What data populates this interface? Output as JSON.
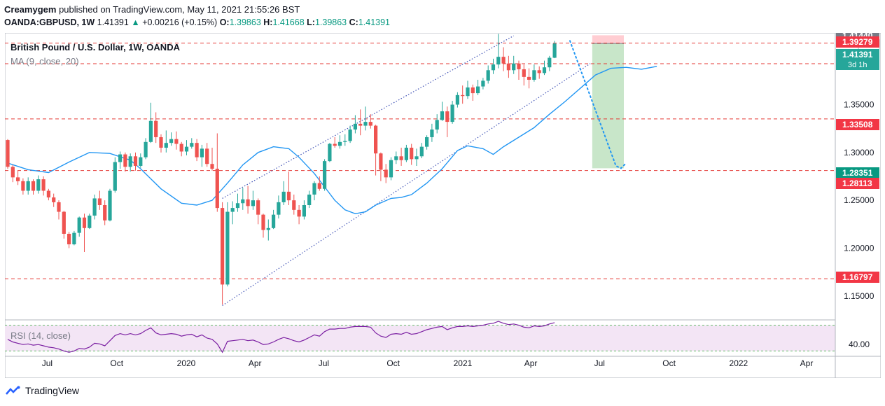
{
  "header": {
    "author": "Creamygem",
    "published_text": "published on TradingView.com, May 11, 2021 21:55:26 BST",
    "symbol": "OANDA:GBPUSD, 1W",
    "last": "1.41391",
    "change_arrow": "▲",
    "change": "+0.00216 (+0.15%)",
    "open_label": "O:",
    "open": "1.39863",
    "high_label": "H:",
    "high": "1.41668",
    "low_label": "L:",
    "low": "1.39863",
    "close_label": "C:",
    "close": "1.41391"
  },
  "legend": {
    "title": "British Pound / U.S. Dollar, 1W, OANDA",
    "ma": "MA (9, close, 20)",
    "rsi": "RSI (14, close)"
  },
  "footer": {
    "brand": "TradingView",
    "logo_icon": "tradingview-logo-icon"
  },
  "colors": {
    "up": "#26a69a",
    "down": "#ef5350",
    "ma": "#2196f3",
    "channel": "#3f51b5",
    "level": "#e53935",
    "rsi": "#7b1fa2",
    "rsi_bg": "#f3e5f5",
    "target_green": "#c8e6c9",
    "stop_red": "#ffcdd2"
  },
  "chart_data": [
    {
      "type": "candlestick",
      "title": "British Pound / U.S. Dollar, 1W, OANDA",
      "currency": "USD",
      "x_ticks": [
        "Jul",
        "Oct",
        "2020",
        "Apr",
        "Jul",
        "Oct",
        "2021",
        "Apr",
        "Jul",
        "Oct",
        "2022",
        "Apr"
      ],
      "y_ticks": [
        "1.15000",
        "1.20000",
        "1.25000",
        "1.30000",
        "1.35000"
      ],
      "ylim": [
        1.125,
        1.425
      ],
      "x_range": [
        "2019-05-06",
        "2022-05-09"
      ],
      "candles": [
        {
          "o": 1.313,
          "c": 1.285,
          "h": 1.314,
          "l": 1.283
        },
        {
          "o": 1.285,
          "c": 1.274,
          "h": 1.287,
          "l": 1.269
        },
        {
          "o": 1.274,
          "c": 1.27,
          "h": 1.281,
          "l": 1.266
        },
        {
          "o": 1.27,
          "c": 1.26,
          "h": 1.273,
          "l": 1.256
        },
        {
          "o": 1.26,
          "c": 1.27,
          "h": 1.274,
          "l": 1.256
        },
        {
          "o": 1.27,
          "c": 1.26,
          "h": 1.272,
          "l": 1.256
        },
        {
          "o": 1.26,
          "c": 1.272,
          "h": 1.276,
          "l": 1.257
        },
        {
          "o": 1.272,
          "c": 1.26,
          "h": 1.275,
          "l": 1.255
        },
        {
          "o": 1.26,
          "c": 1.253,
          "h": 1.262,
          "l": 1.25
        },
        {
          "o": 1.253,
          "c": 1.248,
          "h": 1.257,
          "l": 1.243
        },
        {
          "o": 1.248,
          "c": 1.238,
          "h": 1.25,
          "l": 1.23
        },
        {
          "o": 1.238,
          "c": 1.215,
          "h": 1.239,
          "l": 1.21
        },
        {
          "o": 1.215,
          "c": 1.204,
          "h": 1.217,
          "l": 1.2
        },
        {
          "o": 1.204,
          "c": 1.216,
          "h": 1.218,
          "l": 1.203
        },
        {
          "o": 1.216,
          "c": 1.232,
          "h": 1.233,
          "l": 1.212
        },
        {
          "o": 1.232,
          "c": 1.221,
          "h": 1.236,
          "l": 1.196
        },
        {
          "o": 1.221,
          "c": 1.234,
          "h": 1.236,
          "l": 1.22
        },
        {
          "o": 1.234,
          "c": 1.252,
          "h": 1.256,
          "l": 1.23
        },
        {
          "o": 1.252,
          "c": 1.245,
          "h": 1.26,
          "l": 1.24
        },
        {
          "o": 1.245,
          "c": 1.229,
          "h": 1.25,
          "l": 1.224
        },
        {
          "o": 1.229,
          "c": 1.26,
          "h": 1.262,
          "l": 1.228
        },
        {
          "o": 1.26,
          "c": 1.29,
          "h": 1.295,
          "l": 1.258
        },
        {
          "o": 1.29,
          "c": 1.298,
          "h": 1.301,
          "l": 1.283
        },
        {
          "o": 1.298,
          "c": 1.285,
          "h": 1.3,
          "l": 1.28
        },
        {
          "o": 1.285,
          "c": 1.296,
          "h": 1.299,
          "l": 1.28
        },
        {
          "o": 1.296,
          "c": 1.286,
          "h": 1.3,
          "l": 1.281
        },
        {
          "o": 1.286,
          "c": 1.295,
          "h": 1.299,
          "l": 1.284
        },
        {
          "o": 1.295,
          "c": 1.311,
          "h": 1.315,
          "l": 1.293
        },
        {
          "o": 1.311,
          "c": 1.333,
          "h": 1.352,
          "l": 1.31
        },
        {
          "o": 1.333,
          "c": 1.316,
          "h": 1.342,
          "l": 1.31
        },
        {
          "o": 1.316,
          "c": 1.305,
          "h": 1.319,
          "l": 1.3
        },
        {
          "o": 1.305,
          "c": 1.31,
          "h": 1.323,
          "l": 1.3
        },
        {
          "o": 1.31,
          "c": 1.314,
          "h": 1.321,
          "l": 1.307
        },
        {
          "o": 1.314,
          "c": 1.309,
          "h": 1.322,
          "l": 1.303
        },
        {
          "o": 1.309,
          "c": 1.301,
          "h": 1.311,
          "l": 1.296
        },
        {
          "o": 1.301,
          "c": 1.306,
          "h": 1.313,
          "l": 1.297
        },
        {
          "o": 1.306,
          "c": 1.31,
          "h": 1.315,
          "l": 1.304
        },
        {
          "o": 1.31,
          "c": 1.295,
          "h": 1.314,
          "l": 1.291
        },
        {
          "o": 1.295,
          "c": 1.304,
          "h": 1.308,
          "l": 1.285
        },
        {
          "o": 1.304,
          "c": 1.288,
          "h": 1.31,
          "l": 1.285
        },
        {
          "o": 1.288,
          "c": 1.283,
          "h": 1.305,
          "l": 1.281
        },
        {
          "o": 1.283,
          "c": 1.242,
          "h": 1.32,
          "l": 1.238
        },
        {
          "o": 1.242,
          "c": 1.162,
          "h": 1.248,
          "l": 1.141
        },
        {
          "o": 1.162,
          "c": 1.238,
          "h": 1.248,
          "l": 1.16
        },
        {
          "o": 1.238,
          "c": 1.242,
          "h": 1.249,
          "l": 1.225
        },
        {
          "o": 1.242,
          "c": 1.247,
          "h": 1.257,
          "l": 1.238
        },
        {
          "o": 1.247,
          "c": 1.251,
          "h": 1.263,
          "l": 1.24
        },
        {
          "o": 1.251,
          "c": 1.244,
          "h": 1.265,
          "l": 1.236
        },
        {
          "o": 1.244,
          "c": 1.25,
          "h": 1.26,
          "l": 1.24
        },
        {
          "o": 1.25,
          "c": 1.235,
          "h": 1.252,
          "l": 1.225
        },
        {
          "o": 1.235,
          "c": 1.219,
          "h": 1.236,
          "l": 1.211
        },
        {
          "o": 1.219,
          "c": 1.221,
          "h": 1.23,
          "l": 1.208
        },
        {
          "o": 1.221,
          "c": 1.235,
          "h": 1.24,
          "l": 1.22
        },
        {
          "o": 1.235,
          "c": 1.248,
          "h": 1.255,
          "l": 1.231
        },
        {
          "o": 1.248,
          "c": 1.259,
          "h": 1.27,
          "l": 1.245
        },
        {
          "o": 1.259,
          "c": 1.25,
          "h": 1.28,
          "l": 1.245
        },
        {
          "o": 1.25,
          "c": 1.24,
          "h": 1.256,
          "l": 1.235
        },
        {
          "o": 1.24,
          "c": 1.233,
          "h": 1.245,
          "l": 1.225
        },
        {
          "o": 1.233,
          "c": 1.245,
          "h": 1.25,
          "l": 1.23
        },
        {
          "o": 1.245,
          "c": 1.256,
          "h": 1.26,
          "l": 1.242
        },
        {
          "o": 1.256,
          "c": 1.268,
          "h": 1.27,
          "l": 1.25
        },
        {
          "o": 1.268,
          "c": 1.262,
          "h": 1.275,
          "l": 1.26
        },
        {
          "o": 1.262,
          "c": 1.291,
          "h": 1.293,
          "l": 1.26
        },
        {
          "o": 1.291,
          "c": 1.309,
          "h": 1.31,
          "l": 1.29
        },
        {
          "o": 1.309,
          "c": 1.307,
          "h": 1.316,
          "l": 1.305
        },
        {
          "o": 1.307,
          "c": 1.311,
          "h": 1.318,
          "l": 1.304
        },
        {
          "o": 1.311,
          "c": 1.312,
          "h": 1.319,
          "l": 1.307
        },
        {
          "o": 1.312,
          "c": 1.324,
          "h": 1.328,
          "l": 1.31
        },
        {
          "o": 1.324,
          "c": 1.33,
          "h": 1.339,
          "l": 1.32
        },
        {
          "o": 1.33,
          "c": 1.328,
          "h": 1.345,
          "l": 1.318
        },
        {
          "o": 1.328,
          "c": 1.332,
          "h": 1.348,
          "l": 1.323
        },
        {
          "o": 1.332,
          "c": 1.328,
          "h": 1.34,
          "l": 1.325
        },
        {
          "o": 1.328,
          "c": 1.299,
          "h": 1.329,
          "l": 1.276
        },
        {
          "o": 1.299,
          "c": 1.282,
          "h": 1.3,
          "l": 1.27
        },
        {
          "o": 1.282,
          "c": 1.274,
          "h": 1.288,
          "l": 1.268
        },
        {
          "o": 1.274,
          "c": 1.292,
          "h": 1.295,
          "l": 1.271
        },
        {
          "o": 1.292,
          "c": 1.296,
          "h": 1.301,
          "l": 1.288
        },
        {
          "o": 1.296,
          "c": 1.292,
          "h": 1.305,
          "l": 1.286
        },
        {
          "o": 1.292,
          "c": 1.305,
          "h": 1.308,
          "l": 1.29
        },
        {
          "o": 1.305,
          "c": 1.293,
          "h": 1.309,
          "l": 1.287
        },
        {
          "o": 1.293,
          "c": 1.296,
          "h": 1.304,
          "l": 1.286
        },
        {
          "o": 1.296,
          "c": 1.306,
          "h": 1.31,
          "l": 1.294
        },
        {
          "o": 1.306,
          "c": 1.316,
          "h": 1.318,
          "l": 1.303
        },
        {
          "o": 1.316,
          "c": 1.324,
          "h": 1.33,
          "l": 1.311
        },
        {
          "o": 1.324,
          "c": 1.334,
          "h": 1.34,
          "l": 1.32
        },
        {
          "o": 1.334,
          "c": 1.343,
          "h": 1.353,
          "l": 1.333
        },
        {
          "o": 1.343,
          "c": 1.332,
          "h": 1.348,
          "l": 1.316
        },
        {
          "o": 1.332,
          "c": 1.35,
          "h": 1.354,
          "l": 1.33
        },
        {
          "o": 1.35,
          "c": 1.36,
          "h": 1.363,
          "l": 1.347
        },
        {
          "o": 1.36,
          "c": 1.359,
          "h": 1.37,
          "l": 1.351
        },
        {
          "o": 1.359,
          "c": 1.368,
          "h": 1.375,
          "l": 1.356
        },
        {
          "o": 1.368,
          "c": 1.362,
          "h": 1.371,
          "l": 1.354
        },
        {
          "o": 1.362,
          "c": 1.369,
          "h": 1.376,
          "l": 1.36
        },
        {
          "o": 1.369,
          "c": 1.375,
          "h": 1.378,
          "l": 1.366
        },
        {
          "o": 1.375,
          "c": 1.386,
          "h": 1.391,
          "l": 1.372
        },
        {
          "o": 1.386,
          "c": 1.392,
          "h": 1.398,
          "l": 1.382
        },
        {
          "o": 1.392,
          "c": 1.4,
          "h": 1.424,
          "l": 1.388
        },
        {
          "o": 1.4,
          "c": 1.393,
          "h": 1.41,
          "l": 1.385
        },
        {
          "o": 1.393,
          "c": 1.386,
          "h": 1.401,
          "l": 1.378
        },
        {
          "o": 1.386,
          "c": 1.393,
          "h": 1.401,
          "l": 1.382
        },
        {
          "o": 1.393,
          "c": 1.387,
          "h": 1.396,
          "l": 1.376
        },
        {
          "o": 1.387,
          "c": 1.379,
          "h": 1.392,
          "l": 1.37
        },
        {
          "o": 1.379,
          "c": 1.376,
          "h": 1.388,
          "l": 1.367
        },
        {
          "o": 1.376,
          "c": 1.386,
          "h": 1.392,
          "l": 1.374
        },
        {
          "o": 1.386,
          "c": 1.383,
          "h": 1.39,
          "l": 1.377
        },
        {
          "o": 1.383,
          "c": 1.389,
          "h": 1.396,
          "l": 1.381
        },
        {
          "o": 1.389,
          "c": 1.399,
          "h": 1.401,
          "l": 1.385
        },
        {
          "o": 1.399,
          "c": 1.4139,
          "h": 1.4167,
          "l": 1.3986
        }
      ],
      "ma_series": {
        "name": "MA (9, close, 20)",
        "points": [
          [
            0,
            1.289
          ],
          [
            4,
            1.282
          ],
          [
            8,
            1.279
          ],
          [
            12,
            1.29
          ],
          [
            16,
            1.3
          ],
          [
            20,
            1.299
          ],
          [
            24,
            1.292
          ],
          [
            26,
            1.283
          ],
          [
            30,
            1.262
          ],
          [
            34,
            1.247
          ],
          [
            37,
            1.245
          ],
          [
            40,
            1.25
          ],
          [
            43,
            1.268
          ],
          [
            46,
            1.287
          ],
          [
            49,
            1.3
          ],
          [
            52,
            1.306
          ],
          [
            55,
            1.304
          ],
          [
            57,
            1.295
          ],
          [
            60,
            1.278
          ],
          [
            62,
            1.264
          ],
          [
            64,
            1.25
          ],
          [
            66,
            1.24
          ],
          [
            68,
            1.236
          ],
          [
            70,
            1.238
          ],
          [
            72,
            1.245
          ],
          [
            75,
            1.252
          ],
          [
            77,
            1.253
          ],
          [
            79,
            1.256
          ],
          [
            82,
            1.268
          ],
          [
            85,
            1.283
          ],
          [
            88,
            1.302
          ],
          [
            90,
            1.307
          ],
          [
            93,
            1.304
          ],
          [
            95,
            1.298
          ],
          [
            97,
            1.306
          ],
          [
            100,
            1.316
          ],
          [
            103,
            1.326
          ],
          [
            106,
            1.34
          ],
          [
            109,
            1.353
          ],
          [
            112,
            1.367
          ],
          [
            115,
            1.381
          ],
          [
            118,
            1.388
          ],
          [
            121,
            1.389
          ],
          [
            124,
            1.387
          ],
          [
            127,
            1.39
          ]
        ]
      },
      "ascending_channel": {
        "upper": {
          "from": {
            "i": 42,
            "p": 1.252
          },
          "to": {
            "i": 99,
            "p": 1.422
          }
        },
        "lower": {
          "from": {
            "i": 42,
            "p": 1.14
          },
          "to": {
            "i": 114,
            "p": 1.393
          }
        }
      },
      "horizontal_levels": [
        "1.41440",
        "1.39279",
        "1.33508",
        "1.28113",
        "1.16797"
      ],
      "position_tool": {
        "entry": 1.4139,
        "stop": 1.4225,
        "target": 1.2835,
        "from_index": 113,
        "to_index": 120
      },
      "projection_path": [
        {
          "i": 110,
          "p": 1.4167
        },
        {
          "i": 119,
          "p": 1.286
        },
        {
          "i": 120,
          "p": 1.2835
        },
        {
          "i": 121,
          "p": 1.289
        }
      ],
      "price_labels": [
        {
          "value": "1.41440",
          "color": "#787b86"
        },
        {
          "value": "1.39279",
          "display": "1.39279",
          "color": "#f23645"
        },
        {
          "value": "1.41391",
          "sub": "3d 1h",
          "color": "#26a69a"
        },
        {
          "value": "1.33508",
          "color": "#f23645"
        },
        {
          "value": "1.28351",
          "color": "#089981"
        },
        {
          "value": "1.28113",
          "color": "#f23645"
        },
        {
          "value": "1.16797",
          "color": "#f23645"
        }
      ]
    },
    {
      "type": "line",
      "title": "RSI (14, close)",
      "y_ticks": [
        "40.00"
      ],
      "ylim": [
        25,
        75
      ],
      "band": [
        30,
        70
      ],
      "values": [
        48,
        44,
        42,
        40,
        41,
        39,
        40,
        38,
        36,
        35,
        33,
        30,
        28,
        30,
        34,
        33,
        36,
        42,
        41,
        38,
        46,
        54,
        57,
        55,
        57,
        55,
        57,
        62,
        66,
        58,
        55,
        56,
        57,
        56,
        53,
        55,
        56,
        52,
        55,
        50,
        48,
        41,
        28,
        45,
        46,
        47,
        48,
        46,
        47,
        44,
        40,
        41,
        44,
        48,
        51,
        49,
        46,
        44,
        47,
        51,
        55,
        53,
        60,
        64,
        64,
        65,
        65,
        67,
        68,
        68,
        68,
        67,
        58,
        53,
        51,
        56,
        57,
        56,
        59,
        56,
        57,
        60,
        63,
        65,
        67,
        68,
        63,
        66,
        68,
        68,
        69,
        68,
        69,
        70,
        72,
        73,
        76,
        73,
        71,
        72,
        70,
        67,
        66,
        69,
        68,
        69,
        72,
        74
      ]
    }
  ]
}
